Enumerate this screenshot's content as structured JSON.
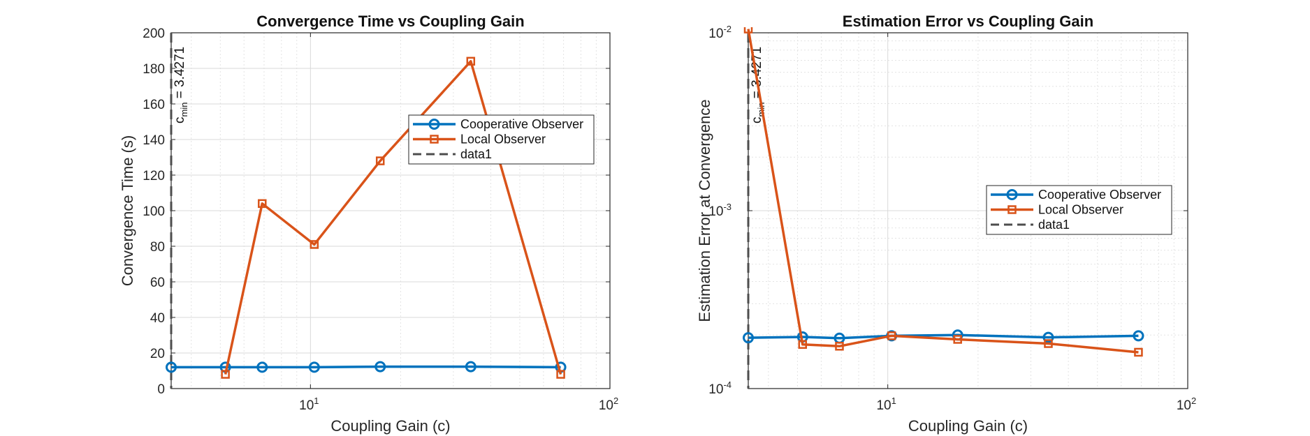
{
  "chart_data": [
    {
      "type": "line",
      "title": "Convergence Time vs Coupling Gain",
      "xlabel": "Coupling Gain (c)",
      "ylabel": "Convergence Time (s)",
      "xscale": "log",
      "yscale": "linear",
      "xlim": [
        3.4271,
        100
      ],
      "ylim": [
        0,
        200
      ],
      "xticks": [
        10,
        100
      ],
      "xtick_labels": [
        {
          "base": "10",
          "exp": "1"
        },
        {
          "base": "10",
          "exp": "2"
        }
      ],
      "yticks": [
        0,
        20,
        40,
        60,
        80,
        100,
        120,
        140,
        160,
        180,
        200
      ],
      "grid": true,
      "legend_position": "upper-right",
      "x": [
        3.4271,
        5.2,
        6.9,
        10.3,
        17.1,
        34.3,
        68.5
      ],
      "series": [
        {
          "name": "Cooperative Observer",
          "color": "#0072BD",
          "marker": "circle",
          "values": [
            12,
            12,
            12,
            12,
            12.3,
            12.3,
            12
          ]
        },
        {
          "name": "Local Observer",
          "color": "#D95319",
          "marker": "square",
          "values": [
            null,
            8,
            104,
            81,
            128,
            184,
            8
          ]
        },
        {
          "name": "data1",
          "color": "#4d4d4d",
          "style": "dashed",
          "vline_x": 3.4271
        }
      ],
      "annotation": {
        "text": "c",
        "sub": "min",
        "rest": " = 3.4271",
        "x": 3.4271
      }
    },
    {
      "type": "line",
      "title": "Estimation Error vs Coupling Gain",
      "xlabel": "Coupling Gain (c)",
      "ylabel": "Estimation Error at Convergence",
      "xscale": "log",
      "yscale": "log",
      "xlim": [
        3.4271,
        100
      ],
      "ylim": [
        0.0001,
        0.01
      ],
      "xticks": [
        10,
        100
      ],
      "xtick_labels": [
        {
          "base": "10",
          "exp": "1"
        },
        {
          "base": "10",
          "exp": "2"
        }
      ],
      "yticks": [
        0.0001,
        0.001,
        0.01
      ],
      "ytick_labels": [
        {
          "base": "10",
          "exp": "-4"
        },
        {
          "base": "10",
          "exp": "-3"
        },
        {
          "base": "10",
          "exp": "-2"
        }
      ],
      "grid": true,
      "legend_position": "center-right",
      "x": [
        3.4271,
        5.2,
        6.9,
        10.3,
        17.1,
        34.3,
        68.5
      ],
      "series": [
        {
          "name": "Cooperative Observer",
          "color": "#0072BD",
          "marker": "circle",
          "values": [
            0.000193,
            0.000195,
            0.000192,
            0.000198,
            0.0002,
            0.000194,
            0.000198
          ]
        },
        {
          "name": "Local Observer",
          "color": "#D95319",
          "marker": "square",
          "values": [
            0.0105,
            0.000177,
            0.000173,
            0.000198,
            0.000189,
            0.000179,
            0.00016
          ]
        },
        {
          "name": "data1",
          "color": "#4d4d4d",
          "style": "dashed",
          "vline_x": 3.4271
        }
      ],
      "annotation": {
        "text": "c",
        "sub": "min",
        "rest": " = 3.4271",
        "x": 3.4271
      }
    }
  ]
}
